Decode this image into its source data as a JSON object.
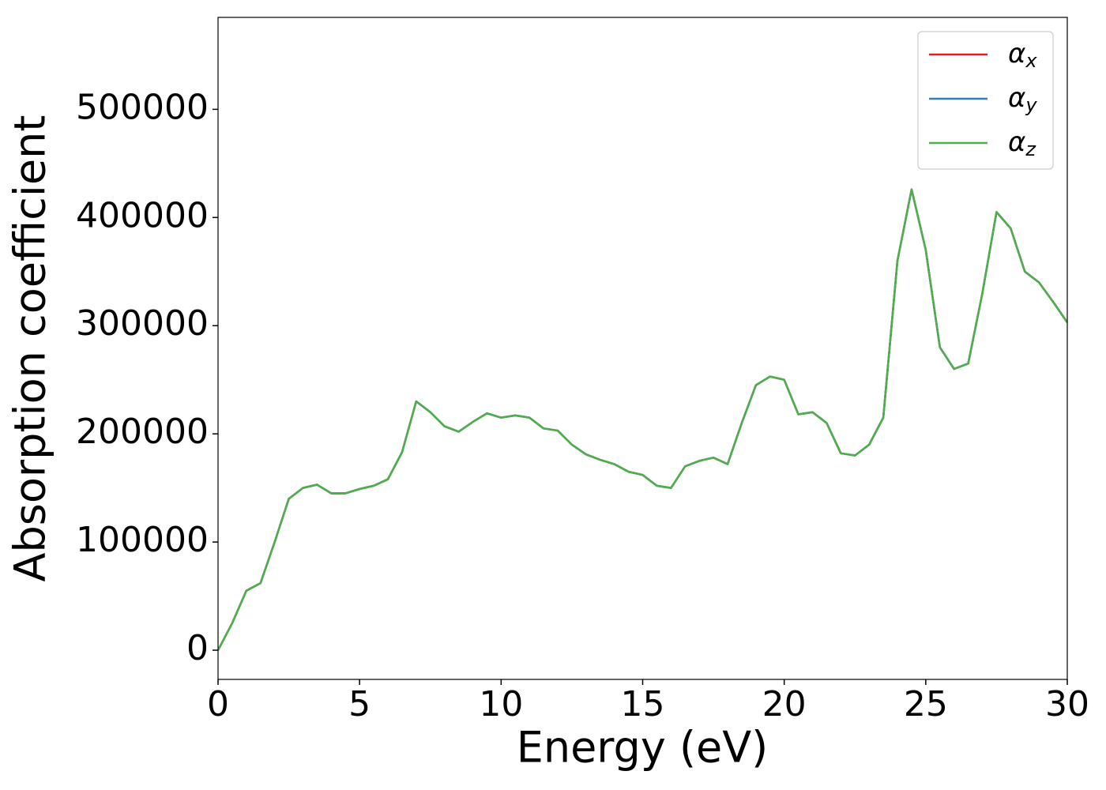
{
  "chart_data": {
    "type": "line",
    "xlabel": "Energy (eV)",
    "ylabel": "Absorption coefficient",
    "x": [
      0,
      0.5,
      1,
      1.5,
      2,
      2.5,
      3,
      3.5,
      4,
      4.5,
      5,
      5.5,
      6,
      6.5,
      7,
      7.5,
      8,
      8.5,
      9,
      9.5,
      10,
      10.5,
      11,
      11.5,
      12,
      12.5,
      13,
      13.5,
      14,
      14.5,
      15,
      15.5,
      16,
      16.5,
      17,
      17.5,
      18,
      18.5,
      19,
      19.5,
      20,
      20.5,
      21,
      21.5,
      22,
      22.5,
      23,
      23.5,
      24,
      24.5,
      25,
      25.5,
      26,
      26.5,
      27,
      27.5,
      28,
      28.5,
      29,
      29.5,
      30
    ],
    "series": [
      {
        "name": "αx",
        "color": "#e41a1c",
        "values": [
          0,
          25000,
          55000,
          62000,
          100000,
          140000,
          150000,
          153000,
          145000,
          145000,
          149000,
          152000,
          158000,
          183000,
          230000,
          220000,
          207000,
          202000,
          211000,
          219000,
          215000,
          217000,
          215000,
          205000,
          203000,
          190000,
          181000,
          176000,
          172000,
          165000,
          162000,
          152000,
          150000,
          170000,
          175000,
          178000,
          172000,
          210000,
          245000,
          253000,
          250000,
          218000,
          220000,
          210000,
          182000,
          180000,
          190000,
          215000,
          360000,
          426000,
          370000,
          280000,
          260000,
          265000,
          330000,
          405000,
          390000,
          350000,
          340000,
          322000,
          303000
        ]
      },
      {
        "name": "αy",
        "color": "#377eb8",
        "values": [
          0,
          25000,
          55000,
          62000,
          100000,
          140000,
          150000,
          153000,
          145000,
          145000,
          149000,
          152000,
          158000,
          183000,
          230000,
          220000,
          207000,
          202000,
          211000,
          219000,
          215000,
          217000,
          215000,
          205000,
          203000,
          190000,
          181000,
          176000,
          172000,
          165000,
          162000,
          152000,
          150000,
          170000,
          175000,
          178000,
          172000,
          210000,
          245000,
          253000,
          250000,
          218000,
          220000,
          210000,
          182000,
          180000,
          190000,
          215000,
          360000,
          426000,
          370000,
          280000,
          260000,
          265000,
          330000,
          405000,
          390000,
          350000,
          340000,
          322000,
          303000
        ]
      },
      {
        "name": "αz",
        "color": "#4daf4a",
        "values": [
          0,
          25000,
          55000,
          62000,
          100000,
          140000,
          150000,
          153000,
          145000,
          145000,
          149000,
          152000,
          158000,
          183000,
          230000,
          220000,
          207000,
          202000,
          211000,
          219000,
          215000,
          217000,
          215000,
          205000,
          203000,
          190000,
          181000,
          176000,
          172000,
          165000,
          162000,
          152000,
          150000,
          170000,
          175000,
          178000,
          172000,
          210000,
          245000,
          253000,
          250000,
          218000,
          220000,
          210000,
          182000,
          180000,
          190000,
          215000,
          360000,
          426000,
          370000,
          280000,
          260000,
          265000,
          330000,
          405000,
          390000,
          350000,
          340000,
          322000,
          303000
        ]
      }
    ],
    "xlim": [
      0,
      30
    ],
    "xticks": [
      0,
      5,
      10,
      15,
      20,
      25,
      30
    ],
    "ylim": [
      -27000,
      585000
    ],
    "yticks": [
      0,
      100000,
      200000,
      300000,
      400000,
      500000
    ],
    "grid": false,
    "legend": "upper right"
  }
}
